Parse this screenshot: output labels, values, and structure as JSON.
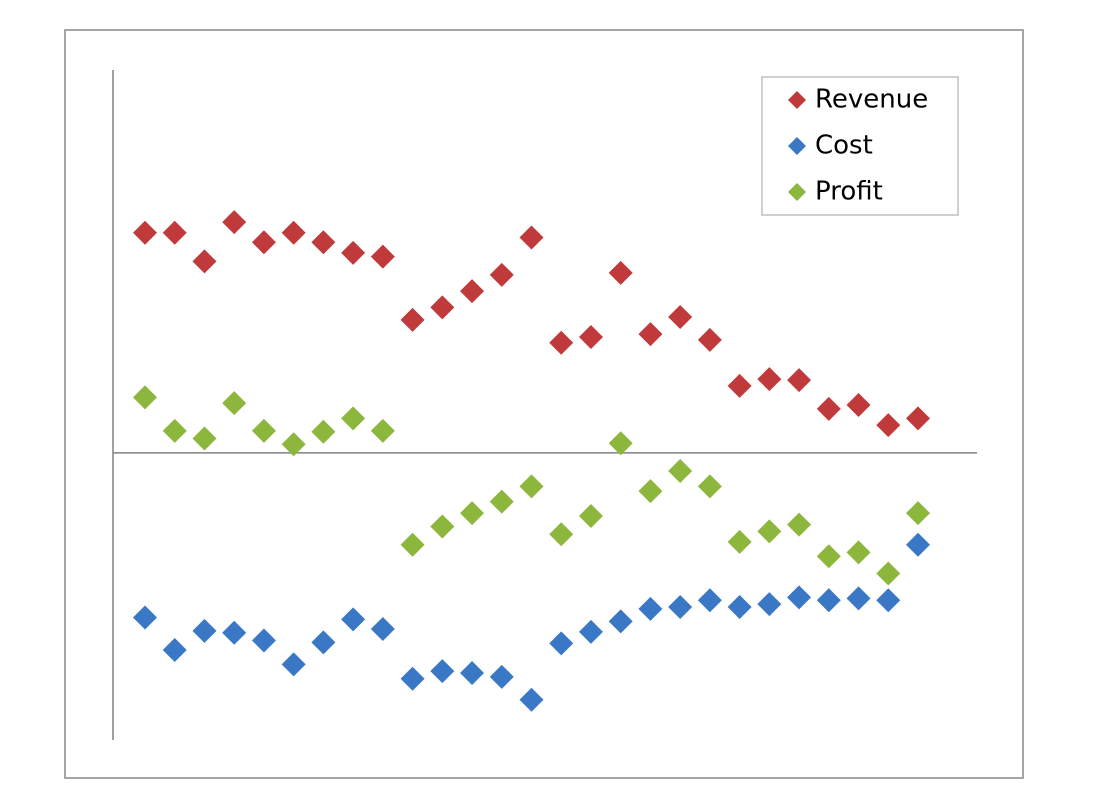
{
  "chart_data": {
    "type": "scatter",
    "categories": [
      null,
      null,
      null,
      null,
      null,
      null,
      null,
      null,
      null,
      null,
      null,
      null,
      null,
      null,
      null,
      null,
      null,
      null,
      null,
      null,
      null,
      null,
      null,
      null,
      null,
      null,
      null
    ],
    "series": [
      {
        "name": "Revenue",
        "color": "#c0393b",
        "values": [
          23.0,
          23.0,
          20.0,
          24.1,
          22.0,
          23.0,
          22.0,
          20.9,
          20.5,
          13.9,
          15.2,
          16.9,
          18.6,
          22.5,
          11.5,
          12.1,
          18.8,
          12.4,
          14.2,
          11.8,
          7.0,
          7.7,
          7.6,
          4.6,
          5.0,
          2.9,
          3.6
        ]
      },
      {
        "name": "Cost",
        "color": "#3a78c6",
        "values": [
          -17.2,
          -20.6,
          -18.6,
          -18.8,
          -19.6,
          -22.1,
          -19.8,
          -17.4,
          -18.4,
          -23.6,
          -22.8,
          -23.0,
          -23.4,
          -25.8,
          -19.9,
          -18.7,
          -17.6,
          -16.3,
          -16.1,
          -15.4,
          -16.1,
          -15.8,
          -15.1,
          -15.4,
          -15.2,
          -15.4,
          -9.6
        ]
      },
      {
        "name": "Profit",
        "color": "#8db63c",
        "values": [
          5.8,
          2.3,
          1.5,
          5.2,
          2.3,
          0.9,
          2.2,
          3.6,
          2.3,
          -9.6,
          -7.7,
          -6.3,
          -5.1,
          -3.5,
          -8.5,
          -6.6,
          1.0,
          -4.0,
          -1.9,
          -3.5,
          -9.3,
          -8.2,
          -7.5,
          -10.8,
          -10.4,
          -12.6,
          -6.3
        ]
      }
    ],
    "ylim": [
      -30,
      40
    ],
    "legend": "top-right"
  }
}
